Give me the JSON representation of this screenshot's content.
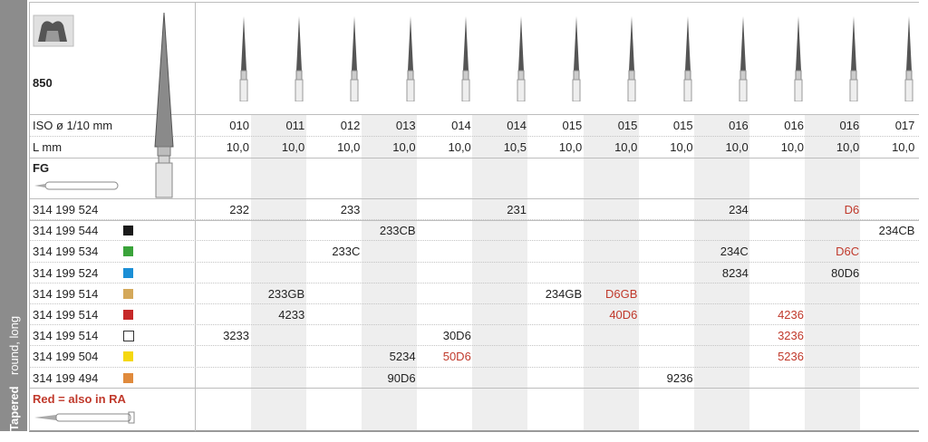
{
  "product": {
    "number": "850",
    "shank": "FG",
    "shape_vertical": "Tapered",
    "shape_vertical_sub": "round, long",
    "note": "Red = also in RA"
  },
  "header": {
    "iso_label": "ISO ø 1/10 mm",
    "length_label": "L mm"
  },
  "columns": [
    {
      "iso": "010",
      "len": "10,0"
    },
    {
      "iso": "011",
      "len": "10,0"
    },
    {
      "iso": "012",
      "len": "10,0"
    },
    {
      "iso": "013",
      "len": "10,0"
    },
    {
      "iso": "014",
      "len": "10,0"
    },
    {
      "iso": "014",
      "len": "10,5"
    },
    {
      "iso": "015",
      "len": "10,0"
    },
    {
      "iso": "015",
      "len": "10,0"
    },
    {
      "iso": "015",
      "len": "10,0"
    },
    {
      "iso": "016",
      "len": "10,0"
    },
    {
      "iso": "016",
      "len": "10,0"
    },
    {
      "iso": "016",
      "len": "10,0"
    },
    {
      "iso": "017",
      "len": "10,0"
    }
  ],
  "rows": [
    {
      "code": "314 199 524",
      "swatch": "",
      "cells": [
        "232",
        "",
        "233",
        "",
        "",
        "231",
        "",
        "",
        "",
        "234",
        "",
        "D6",
        ""
      ],
      "red": [
        11
      ]
    },
    {
      "code": "314 199 544",
      "swatch": "#1a1a1a",
      "cells": [
        "",
        "",
        "",
        "233CB",
        "",
        "",
        "",
        "",
        "",
        "",
        "",
        "",
        "234CB"
      ],
      "red": []
    },
    {
      "code": "314 199 534",
      "swatch": "#3aa33a",
      "cells": [
        "",
        "",
        "233C",
        "",
        "",
        "",
        "",
        "",
        "",
        "234C",
        "",
        "D6C",
        ""
      ],
      "red": [
        11
      ]
    },
    {
      "code": "314 199 524",
      "swatch": "#1b8fd6",
      "cells": [
        "",
        "",
        "",
        "",
        "",
        "",
        "",
        "",
        "",
        "8234",
        "",
        "80D6",
        ""
      ],
      "red": []
    },
    {
      "code": "314 199 514",
      "swatch": "#d4a85a",
      "cells": [
        "",
        "233GB",
        "",
        "",
        "",
        "",
        "234GB",
        "D6GB",
        "",
        "",
        "",
        "",
        ""
      ],
      "red": [
        7
      ]
    },
    {
      "code": "314 199 514",
      "swatch": "#c62828",
      "cells": [
        "",
        "4233",
        "",
        "",
        "",
        "",
        "",
        "40D6",
        "",
        "",
        "4236",
        "",
        ""
      ],
      "red": [
        7,
        10
      ]
    },
    {
      "code": "314 199 514",
      "swatch": "outline",
      "cells": [
        "3233",
        "",
        "",
        "",
        "30D6",
        "",
        "",
        "",
        "",
        "",
        "3236",
        "",
        ""
      ],
      "red": [
        10
      ]
    },
    {
      "code": "314 199 504",
      "swatch": "#f5d80f",
      "cells": [
        "",
        "",
        "",
        "5234",
        "50D6",
        "",
        "",
        "",
        "",
        "",
        "5236",
        "",
        ""
      ],
      "red": [
        4,
        10
      ]
    },
    {
      "code": "314 199 494",
      "swatch": "#e08a3c",
      "cells": [
        "",
        "",
        "",
        "90D6",
        "",
        "",
        "",
        "",
        "9236",
        "",
        "",
        "",
        ""
      ],
      "red": []
    }
  ]
}
